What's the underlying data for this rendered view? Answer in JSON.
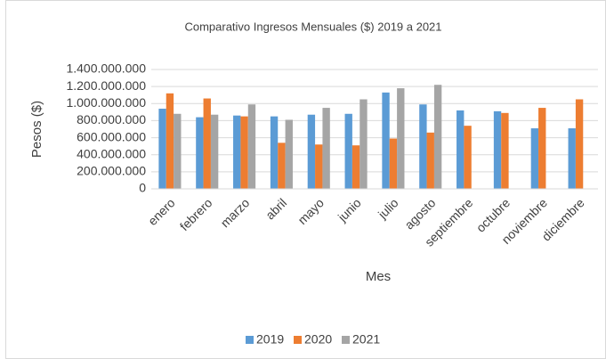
{
  "chart_data": {
    "type": "bar",
    "title": "Comparativo  Ingresos Mensuales  ($) 2019 a 2021",
    "y_label": "Pesos ($)",
    "x_label": "Mes",
    "categories": [
      "enero",
      "febrero",
      "marzo",
      "abril",
      "mayo",
      "junio",
      "julio",
      "agosto",
      "septiembre",
      "octubre",
      "noviembre",
      "diciembre"
    ],
    "series": [
      {
        "name": "2019",
        "color": "#5b9bd5",
        "values": [
          940000000,
          840000000,
          860000000,
          850000000,
          870000000,
          880000000,
          1130000000,
          990000000,
          920000000,
          910000000,
          710000000,
          710000000
        ]
      },
      {
        "name": "2020",
        "color": "#ed7d31",
        "values": [
          1120000000,
          1060000000,
          850000000,
          540000000,
          520000000,
          510000000,
          590000000,
          660000000,
          740000000,
          890000000,
          950000000,
          1050000000
        ]
      },
      {
        "name": "2021",
        "color": "#a5a5a5",
        "values": [
          880000000,
          870000000,
          990000000,
          810000000,
          950000000,
          1050000000,
          1180000000,
          1220000000,
          null,
          null,
          null,
          null
        ]
      }
    ],
    "ylim": [
      0,
      1400000000
    ],
    "yticks": [
      0,
      {
        "value": 200000000,
        "label": "200.000.000"
      },
      {
        "value": 400000000,
        "label": "400.000.000"
      },
      {
        "value": 600000000,
        "label": "600.000.000"
      },
      {
        "value": 800000000,
        "label": "800.000.000"
      },
      {
        "value": 1000000000,
        "label": "1.000.000.000"
      },
      {
        "value": 1200000000,
        "label": "1.200.000.000"
      },
      {
        "value": 1400000000,
        "label": "1.400.000.000"
      }
    ],
    "grid": true,
    "legend": "bottom"
  }
}
